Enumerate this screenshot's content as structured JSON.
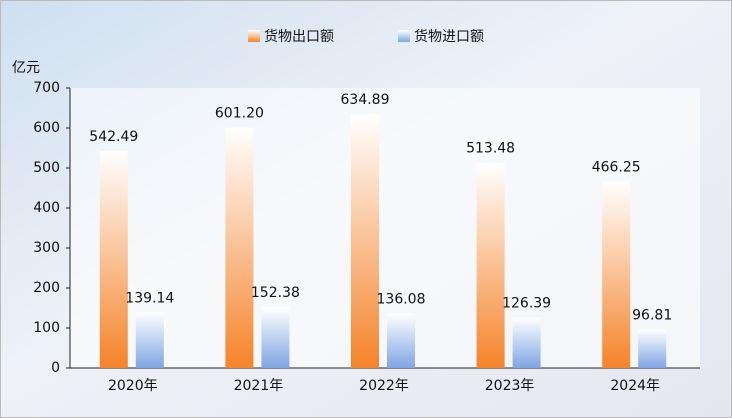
{
  "chart_data": {
    "type": "bar",
    "y_axis_label": "亿元",
    "categories": [
      "2020年",
      "2021年",
      "2022年",
      "2023年",
      "2024年"
    ],
    "series": [
      {
        "name": "货物出口额",
        "color": "#f5832a",
        "values": [
          542.49,
          601.2,
          634.89,
          513.48,
          466.25
        ],
        "value_labels": [
          "542.49",
          "601.20",
          "634.89",
          "513.48",
          "466.25"
        ]
      },
      {
        "name": "货物进口额",
        "color": "#7ea5e2",
        "values": [
          139.14,
          152.38,
          136.08,
          126.39,
          96.81
        ],
        "value_labels": [
          "139.14",
          "152.38",
          "136.08",
          "126.39",
          "96.81"
        ]
      }
    ],
    "ylim": [
      0,
      700
    ],
    "yticks": [
      0,
      100,
      200,
      300,
      400,
      500,
      600,
      700
    ],
    "legend": "top"
  }
}
